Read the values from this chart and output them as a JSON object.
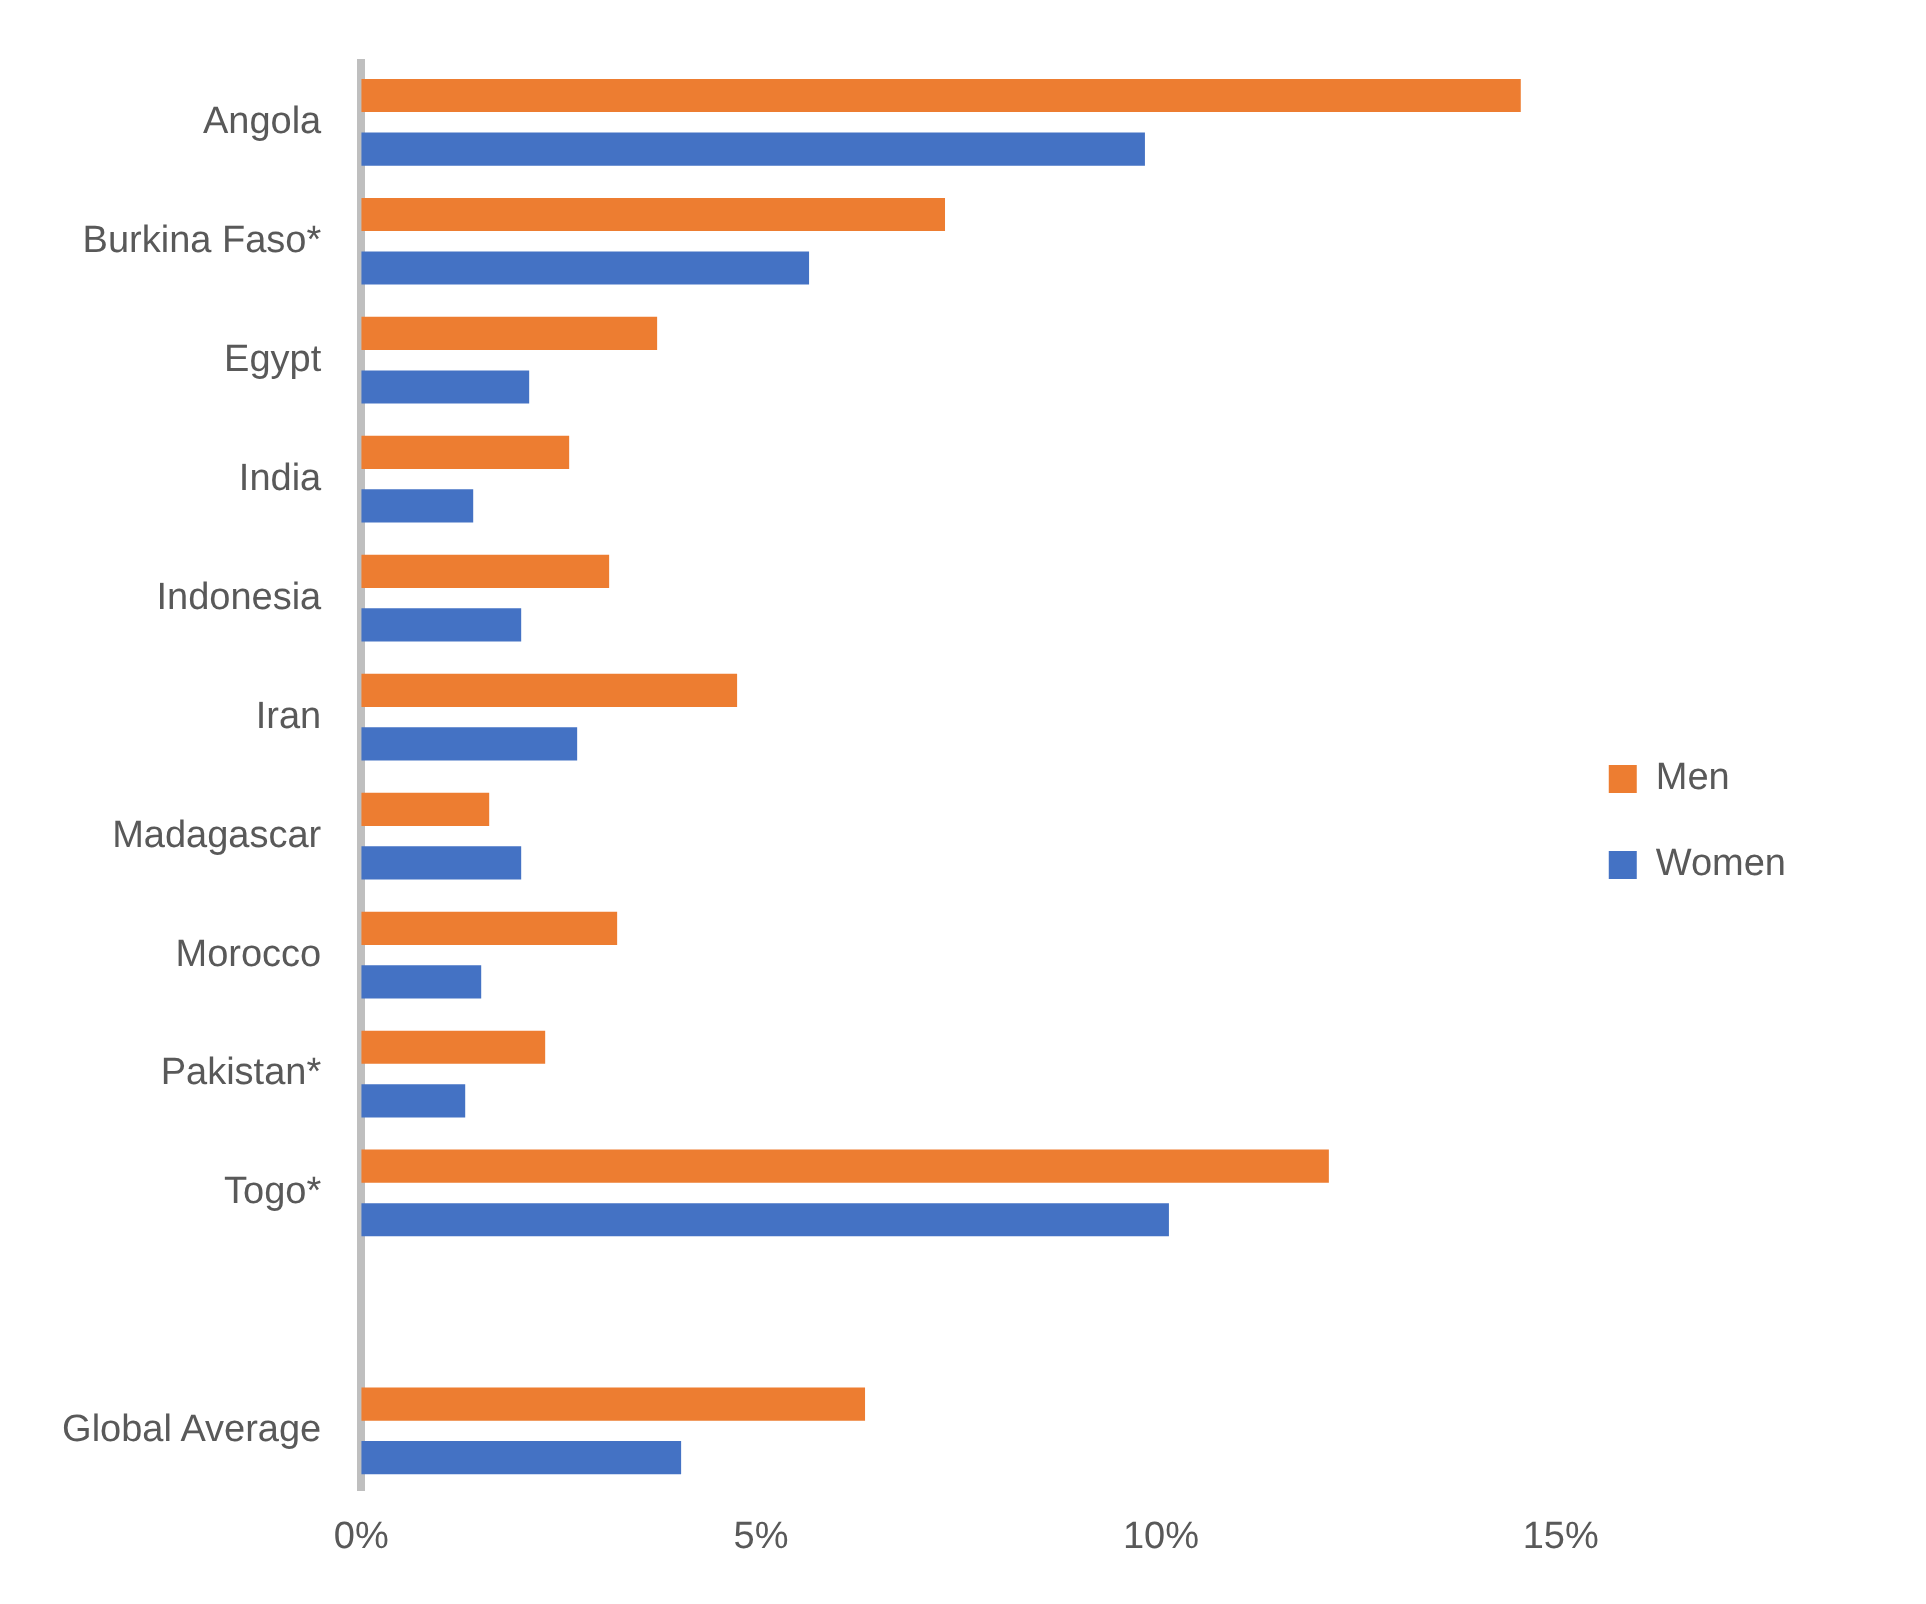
{
  "chart_data": {
    "type": "bar",
    "orientation": "horizontal",
    "categories": [
      "Angola",
      "Burkina Faso*",
      "Egypt",
      "India",
      "Indonesia",
      "Iran",
      "Madagascar",
      "Morocco",
      "Pakistan*",
      "Togo*",
      null,
      "Global Average"
    ],
    "series": [
      {
        "name": "Men",
        "color": "#ed7d31",
        "values": [
          14.5,
          7.3,
          3.7,
          2.6,
          3.1,
          4.7,
          1.6,
          3.2,
          2.3,
          12.1,
          null,
          6.3
        ]
      },
      {
        "name": "Women",
        "color": "#4472c4",
        "values": [
          9.8,
          5.6,
          2.1,
          1.4,
          2.0,
          2.7,
          2.0,
          1.5,
          1.3,
          10.1,
          null,
          4.0
        ]
      }
    ],
    "xlim": [
      0,
      15
    ],
    "xticks": [
      {
        "value": 0,
        "label": "0%"
      },
      {
        "value": 5,
        "label": "5%"
      },
      {
        "value": 10,
        "label": "10%"
      },
      {
        "value": 15,
        "label": "15%"
      }
    ],
    "grid": false,
    "legend": "right"
  }
}
